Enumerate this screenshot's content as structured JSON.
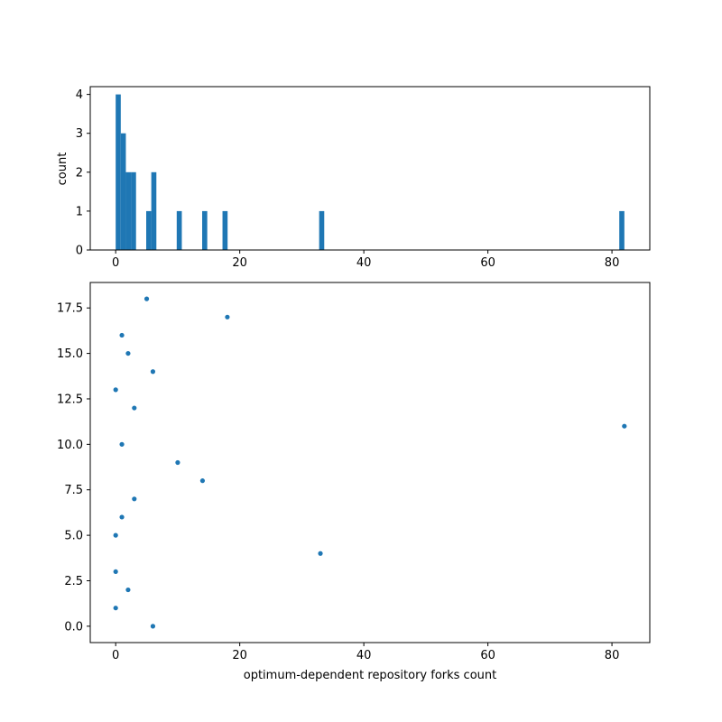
{
  "chart_data": [
    {
      "type": "bar",
      "subtype": "histogram",
      "title": "",
      "xlabel": "",
      "ylabel": "count",
      "xlim": [
        -4.1,
        86.1
      ],
      "ylim": [
        0,
        4.2
      ],
      "xticks": [
        0,
        20,
        40,
        60,
        80
      ],
      "yticks": [
        0,
        1,
        2,
        3,
        4
      ],
      "grid": false,
      "color": "#1f77b4",
      "bin_width": 0.82,
      "bins": [
        {
          "x_start": 0.0,
          "count": 4
        },
        {
          "x_start": 0.82,
          "count": 3
        },
        {
          "x_start": 1.64,
          "count": 2
        },
        {
          "x_start": 2.46,
          "count": 2
        },
        {
          "x_start": 4.92,
          "count": 1
        },
        {
          "x_start": 5.74,
          "count": 2
        },
        {
          "x_start": 9.84,
          "count": 1
        },
        {
          "x_start": 13.94,
          "count": 1
        },
        {
          "x_start": 17.22,
          "count": 1
        },
        {
          "x_start": 32.8,
          "count": 1
        },
        {
          "x_start": 81.18,
          "count": 1
        }
      ]
    },
    {
      "type": "scatter",
      "title": "",
      "xlabel": "optimum-dependent repository forks count",
      "ylabel": "",
      "xlim": [
        -4.1,
        86.1
      ],
      "ylim": [
        -0.9,
        18.9
      ],
      "xticks": [
        0,
        20,
        40,
        60,
        80
      ],
      "yticks": [
        0.0,
        2.5,
        5.0,
        7.5,
        10.0,
        12.5,
        15.0,
        17.5
      ],
      "ytick_labels": [
        "0.0",
        "2.5",
        "5.0",
        "7.5",
        "10.0",
        "12.5",
        "15.0",
        "17.5"
      ],
      "grid": false,
      "color": "#1f77b4",
      "points": [
        {
          "x": 6,
          "y": 0
        },
        {
          "x": 0,
          "y": 1
        },
        {
          "x": 2,
          "y": 2
        },
        {
          "x": 0,
          "y": 3
        },
        {
          "x": 33,
          "y": 4
        },
        {
          "x": 0,
          "y": 5
        },
        {
          "x": 1,
          "y": 6
        },
        {
          "x": 3,
          "y": 7
        },
        {
          "x": 14,
          "y": 8
        },
        {
          "x": 10,
          "y": 9
        },
        {
          "x": 1,
          "y": 10
        },
        {
          "x": 82,
          "y": 11
        },
        {
          "x": 3,
          "y": 12
        },
        {
          "x": 0,
          "y": 13
        },
        {
          "x": 6,
          "y": 14
        },
        {
          "x": 2,
          "y": 15
        },
        {
          "x": 1,
          "y": 16
        },
        {
          "x": 18,
          "y": 17
        },
        {
          "x": 5,
          "y": 18
        }
      ]
    }
  ]
}
